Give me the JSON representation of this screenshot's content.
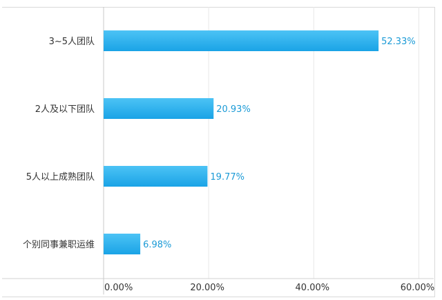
{
  "chart_data": {
    "type": "bar",
    "orientation": "horizontal",
    "categories": [
      "3~5人团队",
      "2人及以下团队",
      "5人以上成熟团队",
      "个别同事兼职运维"
    ],
    "values": [
      52.33,
      20.93,
      19.77,
      6.98
    ],
    "value_labels": [
      "52.33%",
      "20.93%",
      "19.77%",
      "6.98%"
    ],
    "x_ticks": [
      0,
      20,
      40,
      60
    ],
    "x_tick_labels": [
      "0.00%",
      "20.00%",
      "40.00%",
      "60.00%"
    ],
    "xlim": [
      0,
      60
    ],
    "grid": true,
    "legend": "none",
    "colors": {
      "bar_top": "#4cc3f5",
      "bar_bottom": "#1aa3e6",
      "value_label": "#1a9ad6",
      "axis_text": "#333333",
      "grid": "#e8e8e8"
    }
  }
}
